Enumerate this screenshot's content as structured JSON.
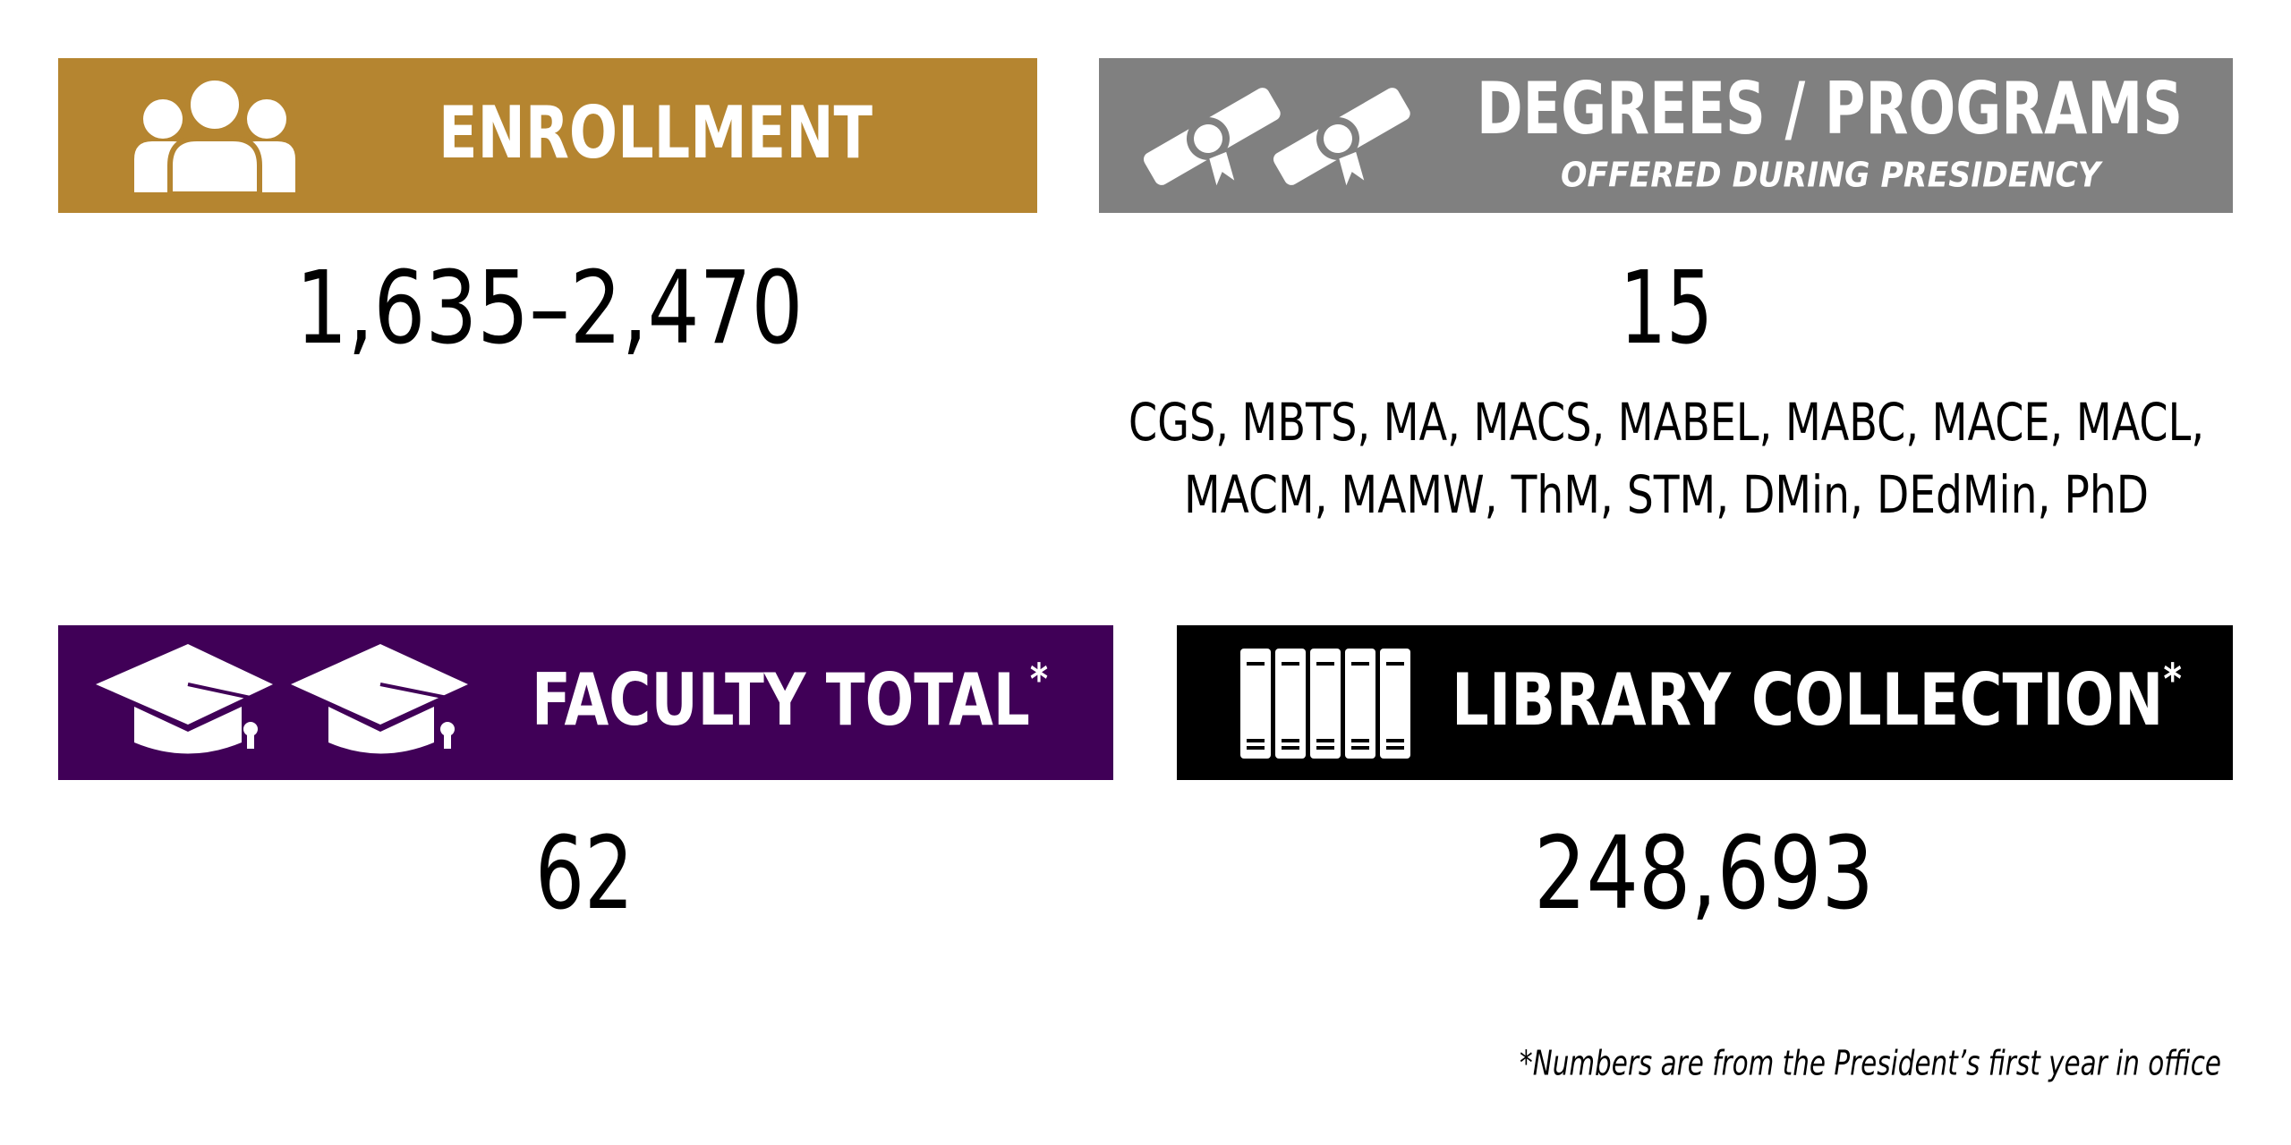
{
  "enrollment": {
    "title": "ENROLLMENT",
    "value": "1,635–2,470"
  },
  "degrees": {
    "title": "DEGREES / PROGRAMS",
    "subtitle": "OFFERED DURING PRESIDENCY",
    "value": "15",
    "list": [
      "CGS, MBTS, MA, MACS, MABEL, MABC, MACE, MACL,",
      "MACM, MAMW, ThM, STM, DMin, DEdMin, PhD"
    ]
  },
  "faculty": {
    "title": "FACULTY TOTAL",
    "marker": "*",
    "value": "62"
  },
  "library": {
    "title": "LIBRARY COLLECTION",
    "marker": "*",
    "value": "248,693"
  },
  "footnote": "*Numbers are from the President’s first year in office"
}
